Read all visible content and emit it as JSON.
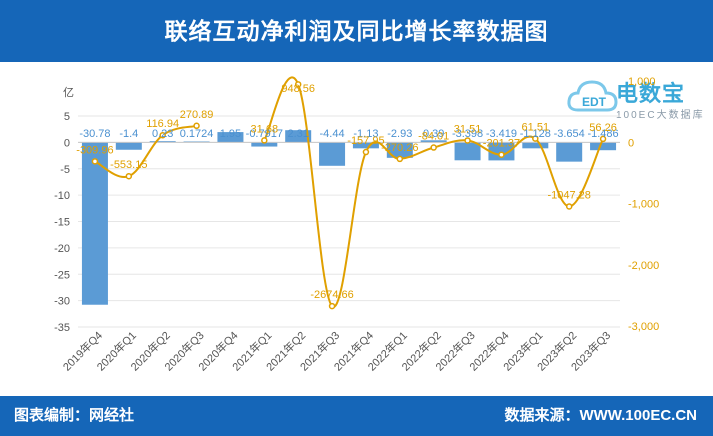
{
  "header": {
    "title": "联络互动净利润及同比增长率数据图"
  },
  "footer": {
    "left": "图表编制：网经社",
    "right": "数据来源：WWW.100EC.CN"
  },
  "logo": {
    "name": "电数宝",
    "sub": "100EC大数据库"
  },
  "colors": {
    "header_bg": "#1566b8",
    "bar": "#5b9bd5",
    "line": "#e0a000"
  },
  "chart_data": {
    "type": "bar",
    "categories": [
      "2019年Q4",
      "2020年Q1",
      "2020年Q2",
      "2020年Q3",
      "2020年Q4",
      "2021年Q1",
      "2021年Q2",
      "2021年Q3",
      "2021年Q4",
      "2022年Q1",
      "2022年Q2",
      "2022年Q3",
      "2022年Q4",
      "2023年Q1",
      "2023年Q2",
      "2023年Q3"
    ],
    "left_axis": {
      "unit": "亿",
      "ylim": [
        -35,
        5
      ],
      "ticks": [
        5,
        0,
        -5,
        -10,
        -15,
        -20,
        -25,
        -30,
        -35
      ]
    },
    "right_axis": {
      "ylim": [
        -3000,
        1000
      ],
      "ticks": [
        1000,
        0,
        -1000,
        -2000,
        -3000
      ],
      "tick_labels": [
        "1,000",
        "0",
        "-1,000",
        "-2,000",
        "-3,000"
      ]
    },
    "series": [
      {
        "kind": "bar",
        "axis": "left",
        "values": [
          -30.78,
          -1.4,
          0.23,
          0.1724,
          1.95,
          -0.7917,
          2.31,
          -4.44,
          -1.13,
          -2.93,
          0.39,
          -3.398,
          -3.419,
          -1.128,
          -3.654,
          -1.486
        ],
        "labels": [
          "-30.78",
          "-1.4",
          "0.23",
          "0.1724",
          "1.95",
          "-0.7917",
          "2.31",
          "-4.44",
          "-1.13",
          "-2.93",
          "0.39",
          "-3.398",
          "-3.419",
          "-1.128",
          "-3.654",
          "-1.486"
        ]
      },
      {
        "kind": "line",
        "axis": "right",
        "values": [
          -309.96,
          -553.15,
          116.94,
          270.89,
          null,
          31.68,
          948.56,
          -2674.66,
          -157.95,
          -270.26,
          -84.01,
          31.51,
          -201.37,
          61.51,
          -1047.28,
          56.26
        ],
        "labels": [
          "-309.96",
          "-553.15",
          "116.94",
          "270.89",
          "",
          "31.68",
          "948.56",
          "-2674.66",
          "-157.95",
          "-270.26",
          "-84.01",
          "31.51",
          "-201.37",
          "61.51",
          "-1047.28",
          "56.26"
        ]
      }
    ],
    "grid": true
  }
}
